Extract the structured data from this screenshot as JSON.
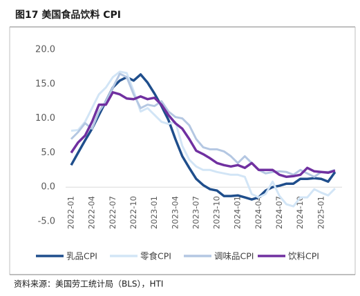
{
  "chart_data": {
    "type": "line",
    "title": "图17 美国食品饮料 CPI",
    "source": "资料来源：美国劳工统计局（BLS），HTI",
    "categories": [
      "2022-01",
      null,
      null,
      "2022-04",
      null,
      null,
      "2022-07",
      null,
      null,
      "2022-10",
      null,
      null,
      "2023-01",
      null,
      null,
      "2023-04",
      null,
      null,
      "2023-07",
      null,
      null,
      "2023-10",
      null,
      null,
      "2024-01",
      null,
      null,
      "2024-04",
      null,
      null,
      "2024-07",
      null,
      null,
      "2024-10",
      null,
      null,
      "2025-01",
      null,
      null
    ],
    "ylim": [
      -5,
      20
    ],
    "yticks": [
      {
        "value": -5,
        "label": "-5.0"
      },
      {
        "value": 0,
        "label": "0.0"
      },
      {
        "value": 5,
        "label": "5.0"
      },
      {
        "value": 10,
        "label": "10.0"
      },
      {
        "value": 15,
        "label": "15.0"
      },
      {
        "value": 20,
        "label": "20.0"
      }
    ],
    "series": [
      {
        "name": "乳品CPI",
        "color": "#1f4e8c",
        "values": [
          3.2,
          5,
          6.8,
          8.5,
          10.5,
          12.5,
          14.5,
          15.5,
          16,
          15.5,
          16.4,
          15.2,
          13.6,
          11.8,
          9.8,
          7,
          4.5,
          2.8,
          1.2,
          0.3,
          -0.3,
          -0.5,
          -1.3,
          -1.3,
          -1.2,
          -1.5,
          -1.8,
          -1.5,
          -0.5,
          0,
          0.2,
          0.5,
          0.5,
          1.2,
          1.2,
          1.3,
          1.2,
          0.8,
          2.2
        ]
      },
      {
        "name": "零食CPI",
        "color": "#d2e5f6",
        "values": [
          8.2,
          8.3,
          9.5,
          11.5,
          13.5,
          14.5,
          16,
          16.8,
          16.6,
          14,
          11,
          11.5,
          10.5,
          9.5,
          9.2,
          9.5,
          6,
          4,
          3,
          2.5,
          2.5,
          2.2,
          2,
          1.8,
          1.8,
          1.5,
          -1,
          -1.5,
          -1,
          0.8,
          -1.3,
          -2.5,
          -2.8,
          -1.5,
          -1.5,
          -0.3,
          -0.8,
          -1.2,
          -0.2
        ]
      },
      {
        "name": "调味品CPI",
        "color": "#b4c7e2",
        "values": [
          7,
          8,
          9.3,
          8.5,
          11,
          12.5,
          14.5,
          16.5,
          16,
          13.5,
          11.5,
          12,
          11.8,
          12.5,
          11,
          10.2,
          10,
          9,
          7,
          5.8,
          5.5,
          5.5,
          5.2,
          4.5,
          3.5,
          4.5,
          3.5,
          2.5,
          2,
          2.2,
          2.3,
          2.2,
          1.8,
          2.5,
          2,
          1.5,
          2.2,
          2.2,
          2.5
        ]
      },
      {
        "name": "饮料CPI",
        "color": "#7030a0",
        "values": [
          5,
          6.5,
          7.5,
          9.5,
          12,
          12,
          13.8,
          13.5,
          12.9,
          12.8,
          13.2,
          12.8,
          13,
          12,
          10.5,
          9.3,
          8.5,
          7,
          5.3,
          4.8,
          4.2,
          3.5,
          3.2,
          3,
          3.2,
          2.8,
          3.5,
          2.5,
          2.5,
          2.5,
          1.8,
          1.5,
          1.6,
          1.8,
          2.8,
          2.3,
          2.2,
          2.1,
          2.4
        ]
      }
    ]
  }
}
